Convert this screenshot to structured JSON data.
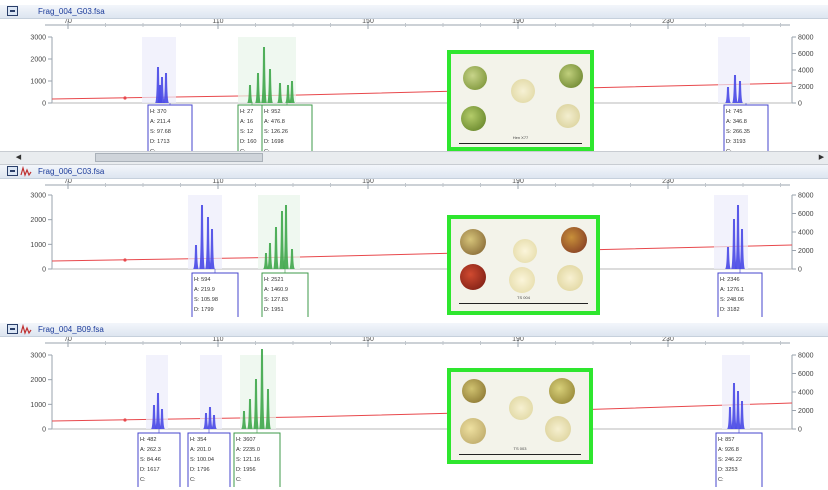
{
  "colors": {
    "title_text": "#1a3a9a",
    "blue_trace": "#4848e6",
    "green_trace": "#3ea64a",
    "red_line": "#e8484c",
    "green_frame": "#2ee62e",
    "blue_box": "#4444cc",
    "green_box": "#3e9a4a"
  },
  "x_ticks": [
    "70",
    "110",
    "150",
    "190",
    "230"
  ],
  "panels": [
    {
      "title": "Frag_004_G03.fsa",
      "y_ticks": [
        "3000",
        "2000",
        "1000",
        "0"
      ],
      "right_ticks": [
        "8000",
        "6000",
        "4000",
        "2000",
        "0"
      ],
      "boxes": [
        {
          "color": "blue",
          "lines": [
            "H: 370",
            "A: 211.4",
            "S: 97.68",
            "D: 1713",
            "C:"
          ]
        },
        {
          "color": "green",
          "lines": [
            "H: 27",
            "A: 16",
            "S: 12",
            "D: 160",
            "C:"
          ]
        },
        {
          "color": "green",
          "lines": [
            "H: 952",
            "A: 476.8",
            "S: 126.26",
            "D: 1698",
            "C:"
          ]
        },
        {
          "color": "blue",
          "lines": [
            "H: 745",
            "A: 346.8",
            "S: 266.35",
            "D: 3193",
            "C:"
          ]
        }
      ],
      "photo_caption": "Hen X77",
      "icon": "panel-icon"
    },
    {
      "title": "Frag_006_C03.fsa",
      "y_ticks": [
        "3000",
        "2000",
        "1000",
        "0"
      ],
      "right_ticks": [
        "8000",
        "6000",
        "4000",
        "2000",
        "0"
      ],
      "boxes": [
        {
          "color": "blue",
          "lines": [
            "H: 594",
            "A: 219.9",
            "S: 105.98",
            "D: 1799",
            "C:"
          ]
        },
        {
          "color": "green",
          "lines": [
            "H: 2521",
            "A: 1460.9",
            "S: 127.83",
            "D: 1951",
            "C:"
          ]
        },
        {
          "color": "blue",
          "lines": [
            "H: 2346",
            "A: 1276.1",
            "S: 248.06",
            "D: 3182",
            "C:"
          ]
        }
      ],
      "photo_caption": "TS 004",
      "icon": "panel-icon"
    },
    {
      "title": "Frag_004_B09.fsa",
      "y_ticks": [
        "3000",
        "2000",
        "1000",
        "0"
      ],
      "right_ticks": [
        "8000",
        "6000",
        "4000",
        "2000",
        "0"
      ],
      "boxes": [
        {
          "color": "blue",
          "lines": [
            "H: 482",
            "A: 262.3",
            "S: 84.46",
            "D: 1617",
            "C:"
          ]
        },
        {
          "color": "blue",
          "lines": [
            "H: 354",
            "A: 201.0",
            "S: 100.04",
            "D: 1796",
            "C:"
          ]
        },
        {
          "color": "green",
          "lines": [
            "H: 3607",
            "A: 2235.0",
            "S: 121.16",
            "D: 1956",
            "C:"
          ]
        },
        {
          "color": "blue",
          "lines": [
            "H: 857",
            "A: 926.8",
            "S: 246.22",
            "D: 3253",
            "C:"
          ]
        }
      ],
      "photo_caption": "TS 003",
      "icon": "panel-icon"
    }
  ]
}
